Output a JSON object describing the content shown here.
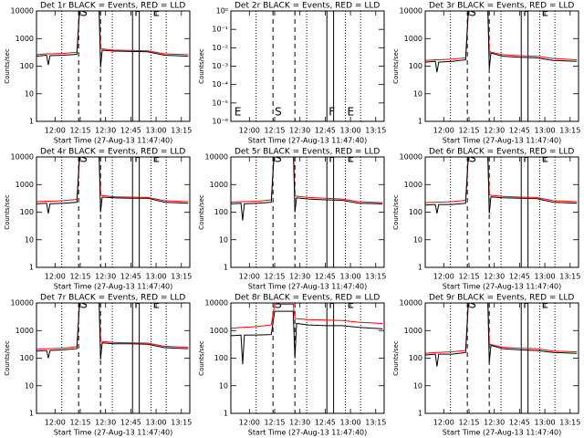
{
  "vlines": [
    {
      "x": 724,
      "style": "dotted"
    },
    {
      "x": 734,
      "style": "dashed"
    },
    {
      "x": 747,
      "style": "dashed"
    },
    {
      "x": 754,
      "style": "dotted"
    },
    {
      "x": 766,
      "style": "solid"
    },
    {
      "x": 770,
      "style": "solid"
    },
    {
      "x": 777,
      "style": "dotted"
    },
    {
      "x": 786,
      "style": "dotted"
    }
  ],
  "chart_data": [
    {
      "type": "line",
      "title": "Det 1r BLACK = Events, RED = LLD",
      "xlabel": "Start Time (27-Aug-13 11:47:40)",
      "ylabel": "Counts/sec",
      "log_y": true,
      "xlim": [
        709,
        800
      ],
      "xticks": [
        {
          "value": 720,
          "label": "12:00"
        },
        {
          "value": 735,
          "label": "12:15"
        },
        {
          "value": 750,
          "label": "12:30"
        },
        {
          "value": 765,
          "label": "12:45"
        },
        {
          "value": 780,
          "label": "13:00"
        },
        {
          "value": 795,
          "label": "13:15"
        }
      ],
      "ylim": [
        1,
        10000
      ],
      "yticks": [
        1,
        10,
        100,
        1000,
        10000
      ],
      "annotations": [
        {
          "text": "S",
          "x": 734,
          "pos": "top"
        },
        {
          "text": "F",
          "x": 766,
          "pos": "top"
        },
        {
          "text": "E",
          "x": 777,
          "pos": "top"
        }
      ],
      "x": [
        709,
        715,
        716,
        717,
        725,
        733,
        735,
        746,
        747,
        748,
        755,
        765,
        775,
        785,
        799
      ],
      "series": [
        {
          "name": "Events",
          "color": "#000000",
          "values": [
            230,
            250,
            110,
            240,
            250,
            270,
            30000,
            30000,
            90,
            380,
            350,
            340,
            330,
            250,
            230
          ]
        },
        {
          "name": "LLD",
          "color": "#ff0000",
          "values": [
            260,
            280,
            280,
            280,
            290,
            320,
            30000,
            30000,
            450,
            420,
            380,
            370,
            360,
            280,
            260
          ]
        }
      ]
    },
    {
      "type": "line",
      "title": "Det 2r BLACK = Events, RED = LLD",
      "xlabel": "Start Time (27-Aug-13 11:47:40)",
      "ylabel": "Counts/sec",
      "log_y": true,
      "xlim": [
        709,
        800
      ],
      "xticks": [
        {
          "value": 720,
          "label": "12:00"
        },
        {
          "value": 735,
          "label": "12:15"
        },
        {
          "value": 750,
          "label": "12:30"
        },
        {
          "value": 765,
          "label": "12:45"
        },
        {
          "value": 780,
          "label": "13:00"
        },
        {
          "value": 795,
          "label": "13:15"
        }
      ],
      "ylim": [
        1e-06,
        1
      ],
      "yticks": [
        {
          "value": 1e-06,
          "label": "10⁻⁶"
        },
        {
          "value": 1e-05,
          "label": "10⁻⁵"
        },
        {
          "value": 0.0001,
          "label": "10⁻⁴"
        },
        {
          "value": 0.001,
          "label": "10⁻³"
        },
        {
          "value": 0.01,
          "label": "10⁻²"
        },
        {
          "value": 0.1,
          "label": "10⁻¹"
        },
        {
          "value": 1,
          "label": "10⁰"
        }
      ],
      "annotations": [
        {
          "text": "E",
          "x": 710,
          "pos": "bottom"
        },
        {
          "text": "S",
          "x": 734,
          "pos": "bottom"
        },
        {
          "text": "F",
          "x": 766,
          "pos": "bottom"
        },
        {
          "text": "E",
          "x": 777,
          "pos": "bottom"
        }
      ],
      "x": [],
      "series": []
    },
    {
      "type": "line",
      "title": "Det 3r BLACK = Events, RED = LLD",
      "xlabel": "Start Time (27-Aug-13 11:47:40)",
      "ylabel": "Counts/sec",
      "log_y": true,
      "xlim": [
        709,
        800
      ],
      "xticks": [
        {
          "value": 720,
          "label": "12:00"
        },
        {
          "value": 735,
          "label": "12:15"
        },
        {
          "value": 750,
          "label": "12:30"
        },
        {
          "value": 765,
          "label": "12:45"
        },
        {
          "value": 780,
          "label": "13:00"
        },
        {
          "value": 795,
          "label": "13:15"
        }
      ],
      "ylim": [
        1,
        10000
      ],
      "yticks": [
        1,
        10,
        100,
        1000,
        10000
      ],
      "annotations": [
        {
          "text": "S",
          "x": 734,
          "pos": "top"
        },
        {
          "text": "F",
          "x": 766,
          "pos": "top"
        },
        {
          "text": "E",
          "x": 777,
          "pos": "top"
        }
      ],
      "x": [
        709,
        715,
        716,
        717,
        725,
        733,
        735,
        746,
        747,
        748,
        755,
        765,
        775,
        785,
        799
      ],
      "series": [
        {
          "name": "Events",
          "color": "#000000",
          "values": [
            140,
            150,
            60,
            140,
            150,
            170,
            30000,
            30000,
            80,
            300,
            230,
            210,
            200,
            160,
            150
          ]
        },
        {
          "name": "LLD",
          "color": "#ff0000",
          "values": [
            160,
            170,
            170,
            170,
            180,
            200,
            30000,
            30000,
            350,
            320,
            260,
            240,
            230,
            190,
            170
          ]
        }
      ]
    },
    {
      "type": "line",
      "title": "Det 4r BLACK = Events, RED = LLD",
      "xlabel": "Start Time (27-Aug-13 11:47:40)",
      "ylabel": "Counts/sec",
      "log_y": true,
      "xlim": [
        709,
        800
      ],
      "xticks": [
        {
          "value": 720,
          "label": "12:00"
        },
        {
          "value": 735,
          "label": "12:15"
        },
        {
          "value": 750,
          "label": "12:30"
        },
        {
          "value": 765,
          "label": "12:45"
        },
        {
          "value": 780,
          "label": "13:00"
        },
        {
          "value": 795,
          "label": "13:15"
        }
      ],
      "ylim": [
        1,
        10000
      ],
      "yticks": [
        1,
        10,
        100,
        1000,
        10000
      ],
      "annotations": [
        {
          "text": "S",
          "x": 734,
          "pos": "top"
        },
        {
          "text": "F",
          "x": 766,
          "pos": "top"
        },
        {
          "text": "E",
          "x": 777,
          "pos": "top"
        }
      ],
      "x": [
        709,
        715,
        716,
        717,
        725,
        733,
        735,
        746,
        747,
        748,
        755,
        765,
        775,
        785,
        799
      ],
      "series": [
        {
          "name": "Events",
          "color": "#000000",
          "values": [
            200,
            210,
            90,
            200,
            210,
            230,
            30000,
            30000,
            100,
            350,
            330,
            320,
            320,
            230,
            210
          ]
        },
        {
          "name": "LLD",
          "color": "#ff0000",
          "values": [
            240,
            250,
            250,
            250,
            260,
            290,
            30000,
            30000,
            420,
            400,
            360,
            350,
            340,
            260,
            240
          ]
        }
      ]
    },
    {
      "type": "line",
      "title": "Det 5r BLACK = Events, RED = LLD",
      "xlabel": "Start Time (27-Aug-13 11:47:40)",
      "ylabel": "Counts/sec",
      "log_y": true,
      "xlim": [
        709,
        800
      ],
      "xticks": [
        {
          "value": 720,
          "label": "12:00"
        },
        {
          "value": 735,
          "label": "12:15"
        },
        {
          "value": 750,
          "label": "12:30"
        },
        {
          "value": 765,
          "label": "12:45"
        },
        {
          "value": 780,
          "label": "13:00"
        },
        {
          "value": 795,
          "label": "13:15"
        }
      ],
      "ylim": [
        1,
        10000
      ],
      "yticks": [
        1,
        10,
        100,
        1000,
        10000
      ],
      "annotations": [
        {
          "text": "S",
          "x": 734,
          "pos": "top"
        },
        {
          "text": "F",
          "x": 766,
          "pos": "top"
        },
        {
          "text": "E",
          "x": 777,
          "pos": "top"
        }
      ],
      "x": [
        709,
        715,
        716,
        717,
        725,
        733,
        735,
        746,
        747,
        748,
        755,
        765,
        775,
        785,
        799
      ],
      "series": [
        {
          "name": "Events",
          "color": "#000000",
          "values": [
            200,
            210,
            50,
            200,
            210,
            230,
            30000,
            30000,
            100,
            330,
            300,
            280,
            270,
            210,
            200
          ]
        },
        {
          "name": "LLD",
          "color": "#ff0000",
          "values": [
            230,
            240,
            240,
            240,
            250,
            280,
            30000,
            30000,
            400,
            380,
            340,
            320,
            300,
            240,
            220
          ]
        }
      ]
    },
    {
      "type": "line",
      "title": "Det 6r BLACK = Events, RED = LLD",
      "xlabel": "Start Time (27-Aug-13 11:47:40)",
      "ylabel": "Counts/sec",
      "log_y": true,
      "xlim": [
        709,
        800
      ],
      "xticks": [
        {
          "value": 720,
          "label": "12:00"
        },
        {
          "value": 735,
          "label": "12:15"
        },
        {
          "value": 750,
          "label": "12:30"
        },
        {
          "value": 765,
          "label": "12:45"
        },
        {
          "value": 780,
          "label": "13:00"
        },
        {
          "value": 795,
          "label": "13:15"
        }
      ],
      "ylim": [
        1,
        10000
      ],
      "yticks": [
        1,
        10,
        100,
        1000,
        10000
      ],
      "annotations": [
        {
          "text": "S",
          "x": 734,
          "pos": "top"
        },
        {
          "text": "F",
          "x": 766,
          "pos": "top"
        },
        {
          "text": "E",
          "x": 777,
          "pos": "top"
        }
      ],
      "x": [
        709,
        715,
        716,
        717,
        725,
        733,
        735,
        746,
        747,
        748,
        755,
        765,
        775,
        785,
        799
      ],
      "series": [
        {
          "name": "Events",
          "color": "#000000",
          "values": [
            180,
            190,
            90,
            190,
            190,
            210,
            30000,
            30000,
            90,
            360,
            330,
            320,
            310,
            230,
            210
          ]
        },
        {
          "name": "LLD",
          "color": "#ff0000",
          "values": [
            220,
            230,
            230,
            230,
            240,
            270,
            30000,
            30000,
            430,
            410,
            370,
            350,
            340,
            260,
            240
          ]
        }
      ]
    },
    {
      "type": "line",
      "title": "Det 7r BLACK = Events, RED = LLD",
      "xlabel": "Start Time (27-Aug-13 11:47:40)",
      "ylabel": "Counts/sec",
      "log_y": true,
      "xlim": [
        709,
        800
      ],
      "xticks": [
        {
          "value": 720,
          "label": "12:00"
        },
        {
          "value": 735,
          "label": "12:15"
        },
        {
          "value": 750,
          "label": "12:30"
        },
        {
          "value": 765,
          "label": "12:45"
        },
        {
          "value": 780,
          "label": "13:00"
        },
        {
          "value": 795,
          "label": "13:15"
        }
      ],
      "ylim": [
        1,
        10000
      ],
      "yticks": [
        1,
        10,
        100,
        1000,
        10000
      ],
      "annotations": [
        {
          "text": "S",
          "x": 734,
          "pos": "top"
        },
        {
          "text": "F",
          "x": 766,
          "pos": "top"
        },
        {
          "text": "E",
          "x": 777,
          "pos": "top"
        }
      ],
      "x": [
        709,
        715,
        716,
        717,
        725,
        733,
        735,
        746,
        747,
        748,
        755,
        765,
        775,
        785,
        799
      ],
      "series": [
        {
          "name": "Events",
          "color": "#000000",
          "values": [
            180,
            190,
            100,
            190,
            200,
            220,
            30000,
            30000,
            90,
            360,
            330,
            330,
            320,
            240,
            220
          ]
        },
        {
          "name": "LLD",
          "color": "#ff0000",
          "values": [
            210,
            220,
            220,
            220,
            230,
            260,
            30000,
            30000,
            420,
            400,
            370,
            360,
            350,
            270,
            250
          ]
        }
      ]
    },
    {
      "type": "line",
      "title": "Det 8r BLACK = Events, RED = LLD",
      "xlabel": "Start Time (27-Aug-13 11:47:40)",
      "ylabel": "Counts/sec",
      "log_y": true,
      "xlim": [
        709,
        800
      ],
      "xticks": [
        {
          "value": 720,
          "label": "12:00"
        },
        {
          "value": 735,
          "label": "12:15"
        },
        {
          "value": 750,
          "label": "12:30"
        },
        {
          "value": 765,
          "label": "12:45"
        },
        {
          "value": 780,
          "label": "13:00"
        },
        {
          "value": 795,
          "label": "13:15"
        }
      ],
      "ylim": [
        1,
        10000
      ],
      "yticks": [
        1,
        10,
        100,
        1000,
        10000
      ],
      "annotations": [
        {
          "text": "S",
          "x": 734,
          "pos": "top"
        },
        {
          "text": "F",
          "x": 766,
          "pos": "top"
        },
        {
          "text": "E",
          "x": 777,
          "pos": "top"
        }
      ],
      "x": [
        709,
        715,
        716,
        717,
        725,
        733,
        735,
        746,
        747,
        748,
        755,
        765,
        775,
        785,
        799
      ],
      "series": [
        {
          "name": "Events",
          "color": "#000000",
          "values": [
            650,
            680,
            60,
            680,
            690,
            720,
            5000,
            5000,
            100,
            1800,
            1600,
            1500,
            1500,
            1300,
            1150
          ]
        },
        {
          "name": "LLD",
          "color": "#ff0000",
          "values": [
            1200,
            1300,
            1300,
            1300,
            1400,
            1600,
            9000,
            9000,
            2800,
            2700,
            2500,
            2400,
            2300,
            2000,
            1800
          ]
        }
      ]
    },
    {
      "type": "line",
      "title": "Det 9r BLACK = Events, RED = LLD",
      "xlabel": "Start Time (27-Aug-13 11:47:40)",
      "ylabel": "Counts/sec",
      "log_y": true,
      "xlim": [
        709,
        800
      ],
      "xticks": [
        {
          "value": 720,
          "label": "12:00"
        },
        {
          "value": 735,
          "label": "12:15"
        },
        {
          "value": 750,
          "label": "12:30"
        },
        {
          "value": 765,
          "label": "12:45"
        },
        {
          "value": 780,
          "label": "13:00"
        },
        {
          "value": 795,
          "label": "13:15"
        }
      ],
      "ylim": [
        1,
        10000
      ],
      "yticks": [
        1,
        10,
        100,
        1000,
        10000
      ],
      "annotations": [
        {
          "text": "S",
          "x": 734,
          "pos": "top"
        },
        {
          "text": "F",
          "x": 766,
          "pos": "top"
        },
        {
          "text": "E",
          "x": 777,
          "pos": "top"
        }
      ],
      "x": [
        709,
        715,
        716,
        717,
        725,
        733,
        735,
        746,
        747,
        748,
        755,
        765,
        775,
        785,
        799
      ],
      "series": [
        {
          "name": "Events",
          "color": "#000000",
          "values": [
            130,
            140,
            50,
            140,
            140,
            160,
            30000,
            30000,
            70,
            290,
            220,
            200,
            190,
            160,
            150
          ]
        },
        {
          "name": "LLD",
          "color": "#ff0000",
          "values": [
            150,
            160,
            160,
            160,
            170,
            190,
            30000,
            30000,
            330,
            310,
            250,
            230,
            220,
            180,
            170
          ]
        }
      ]
    }
  ]
}
